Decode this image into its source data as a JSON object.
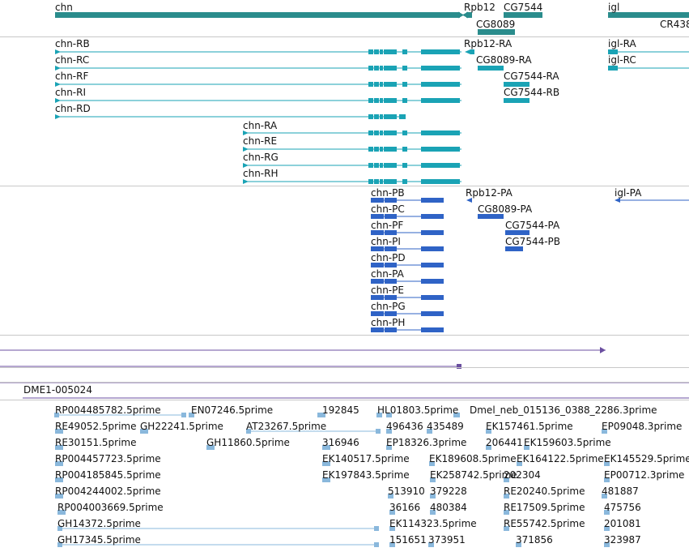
{
  "colors": {
    "gene": "#2a8c8c",
    "transcript": "#1aa3b5",
    "protein": "#2f63c6",
    "alignment": "#6b4fa0",
    "est": "#8ab8dc",
    "separator": "#c8c8c8"
  },
  "genes_track": {
    "labels": [
      "chn",
      "Rpb12",
      "CG7544",
      "igl",
      "CG8089",
      "CR438"
    ]
  },
  "transcripts_track": {
    "labels": [
      "chn-RB",
      "chn-RC",
      "chn-RF",
      "chn-RI",
      "chn-RD",
      "chn-RA",
      "chn-RE",
      "chn-RG",
      "chn-RH",
      "Rpb12-RA",
      "CG8089-RA",
      "CG7544-RA",
      "CG7544-RB",
      "igl-RA",
      "igl-RC"
    ]
  },
  "proteins_track": {
    "labels": [
      "chn-PB",
      "chn-PC",
      "chn-PF",
      "chn-PI",
      "chn-PD",
      "chn-PA",
      "chn-PE",
      "chn-PG",
      "chn-PH",
      "Rpb12-PA",
      "CG8089-PA",
      "CG7544-PA",
      "CG7544-PB",
      "igl-PA"
    ]
  },
  "alignment_track": {
    "labels": [
      "DME1-005024"
    ]
  },
  "est_track": {
    "labels": [
      "RP004485782.5prime",
      "EN07246.5prime",
      "192845",
      "HL01803.5prime",
      "Dmel_neb_015136_0388_2286.3prime",
      "RE49052.5prime",
      "GH22241.5prime",
      "AT23267.5prime",
      "496436",
      "435489",
      "EK157461.5prime",
      "EP09048.3prime",
      "RE30151.5prime",
      "GH11860.5prime",
      "316946",
      "EP18326.3prime",
      "206441",
      "EK159603.5prime",
      "RP004457723.5prime",
      "EK140517.5prime",
      "EK189608.5prime",
      "EK164122.5prime",
      "EK145529.5prime",
      "RP004185845.5prime",
      "EK197843.5prime",
      "EK258742.5prime",
      "202304",
      "EP00712.3prime",
      "RP004244002.5prime",
      "513910",
      "379228",
      "RE20240.5prime",
      "481887",
      "RP004003669.5prime",
      "36166",
      "480384",
      "RE17509.5prime",
      "475756",
      "GH14372.5prime",
      "EK114323.5prime",
      "RE55742.5prime",
      "201081",
      "GH17345.5prime",
      "151651",
      "373951",
      "371856",
      "323987"
    ]
  }
}
